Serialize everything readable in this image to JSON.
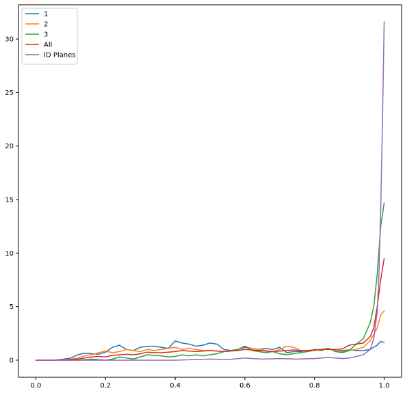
{
  "chart_data": {
    "type": "line",
    "title": "",
    "xlabel": "",
    "ylabel": "",
    "xlim": [
      -0.05,
      1.05
    ],
    "ylim": [
      -1.6,
      33.2
    ],
    "xticks": [
      0.0,
      0.2,
      0.4,
      0.6,
      0.8,
      1.0
    ],
    "xtick_labels": [
      "0.0",
      "0.2",
      "0.4",
      "0.6",
      "0.8",
      "1.0"
    ],
    "yticks": [
      0,
      5,
      10,
      15,
      20,
      25,
      30
    ],
    "ytick_labels": [
      "0",
      "5",
      "10",
      "15",
      "20",
      "25",
      "30"
    ],
    "grid": false,
    "legend_position": "top-left",
    "series": [
      {
        "name": "1",
        "color": "#1f77b4",
        "x": [
          0.0,
          0.05,
          0.08,
          0.1,
          0.12,
          0.14,
          0.16,
          0.18,
          0.2,
          0.22,
          0.24,
          0.26,
          0.28,
          0.3,
          0.32,
          0.34,
          0.36,
          0.38,
          0.4,
          0.42,
          0.44,
          0.46,
          0.48,
          0.5,
          0.52,
          0.54,
          0.56,
          0.58,
          0.6,
          0.62,
          0.64,
          0.66,
          0.68,
          0.7,
          0.72,
          0.74,
          0.76,
          0.78,
          0.8,
          0.82,
          0.84,
          0.86,
          0.88,
          0.9,
          0.92,
          0.94,
          0.96,
          0.98,
          0.99,
          1.0
        ],
        "y": [
          0.0,
          0.0,
          0.1,
          0.2,
          0.5,
          0.65,
          0.6,
          0.55,
          0.75,
          1.2,
          1.4,
          1.0,
          0.9,
          1.2,
          1.3,
          1.3,
          1.2,
          1.1,
          1.8,
          1.6,
          1.5,
          1.3,
          1.4,
          1.6,
          1.5,
          1.0,
          0.9,
          1.0,
          1.2,
          1.1,
          1.0,
          1.1,
          1.0,
          1.2,
          0.7,
          0.8,
          0.8,
          0.9,
          0.95,
          1.0,
          1.1,
          0.9,
          0.9,
          0.95,
          0.9,
          0.9,
          1.0,
          1.4,
          1.75,
          1.65
        ]
      },
      {
        "name": "2",
        "color": "#ff7f0e",
        "x": [
          0.0,
          0.05,
          0.08,
          0.1,
          0.12,
          0.14,
          0.16,
          0.18,
          0.2,
          0.22,
          0.24,
          0.26,
          0.28,
          0.3,
          0.32,
          0.34,
          0.36,
          0.38,
          0.4,
          0.42,
          0.44,
          0.46,
          0.48,
          0.5,
          0.52,
          0.54,
          0.56,
          0.58,
          0.6,
          0.62,
          0.64,
          0.66,
          0.68,
          0.7,
          0.72,
          0.74,
          0.76,
          0.78,
          0.8,
          0.82,
          0.84,
          0.86,
          0.88,
          0.9,
          0.92,
          0.94,
          0.96,
          0.98,
          0.99,
          1.0
        ],
        "y": [
          0.0,
          0.0,
          0.05,
          0.1,
          0.2,
          0.4,
          0.5,
          0.7,
          0.85,
          0.7,
          0.8,
          1.0,
          0.9,
          0.8,
          1.0,
          0.9,
          1.0,
          1.1,
          1.2,
          1.0,
          1.1,
          1.0,
          0.9,
          0.9,
          0.85,
          0.8,
          0.9,
          1.0,
          1.3,
          1.1,
          1.0,
          0.9,
          0.8,
          1.0,
          1.3,
          1.2,
          0.9,
          0.8,
          0.9,
          1.0,
          1.1,
          0.9,
          0.8,
          0.9,
          1.0,
          1.2,
          1.8,
          3.0,
          4.2,
          4.6
        ]
      },
      {
        "name": "3",
        "color": "#2ca02c",
        "x": [
          0.0,
          0.05,
          0.08,
          0.1,
          0.12,
          0.14,
          0.16,
          0.18,
          0.2,
          0.22,
          0.24,
          0.26,
          0.28,
          0.3,
          0.32,
          0.34,
          0.36,
          0.38,
          0.4,
          0.42,
          0.44,
          0.46,
          0.48,
          0.5,
          0.52,
          0.54,
          0.56,
          0.58,
          0.6,
          0.62,
          0.64,
          0.66,
          0.68,
          0.7,
          0.72,
          0.74,
          0.76,
          0.78,
          0.8,
          0.82,
          0.84,
          0.86,
          0.88,
          0.9,
          0.92,
          0.94,
          0.96,
          0.97,
          0.98,
          0.99,
          1.0
        ],
        "y": [
          0.0,
          0.0,
          0.0,
          0.0,
          0.0,
          0.05,
          0.1,
          0.05,
          0.0,
          0.1,
          0.3,
          0.2,
          0.1,
          0.3,
          0.5,
          0.45,
          0.4,
          0.3,
          0.35,
          0.5,
          0.4,
          0.5,
          0.4,
          0.5,
          0.6,
          0.8,
          0.9,
          1.0,
          1.3,
          0.9,
          0.8,
          0.7,
          0.8,
          0.6,
          0.5,
          0.6,
          0.7,
          0.8,
          1.0,
          0.9,
          1.1,
          0.8,
          0.7,
          0.9,
          1.5,
          2.0,
          3.5,
          5.0,
          8.0,
          12.5,
          14.7
        ]
      },
      {
        "name": "All",
        "color": "#d62728",
        "x": [
          0.0,
          0.05,
          0.08,
          0.1,
          0.12,
          0.14,
          0.16,
          0.18,
          0.2,
          0.22,
          0.24,
          0.26,
          0.28,
          0.3,
          0.32,
          0.34,
          0.36,
          0.38,
          0.4,
          0.42,
          0.44,
          0.46,
          0.48,
          0.5,
          0.52,
          0.54,
          0.56,
          0.58,
          0.6,
          0.62,
          0.64,
          0.66,
          0.68,
          0.7,
          0.72,
          0.74,
          0.76,
          0.78,
          0.8,
          0.82,
          0.84,
          0.86,
          0.88,
          0.9,
          0.92,
          0.94,
          0.96,
          0.97,
          0.98,
          0.99,
          1.0
        ],
        "y": [
          0.0,
          0.0,
          0.02,
          0.05,
          0.1,
          0.2,
          0.3,
          0.35,
          0.3,
          0.45,
          0.5,
          0.55,
          0.5,
          0.6,
          0.75,
          0.7,
          0.7,
          0.75,
          0.8,
          0.9,
          0.85,
          0.8,
          0.85,
          0.9,
          0.85,
          0.8,
          0.85,
          0.9,
          1.0,
          0.95,
          0.9,
          0.85,
          0.8,
          0.85,
          0.9,
          0.95,
          0.9,
          0.9,
          0.95,
          1.0,
          1.0,
          1.0,
          1.05,
          1.4,
          1.5,
          1.6,
          2.2,
          3.0,
          5.0,
          7.5,
          9.5
        ]
      },
      {
        "name": "ID Planes",
        "color": "#9467bd",
        "x": [
          0.0,
          0.1,
          0.2,
          0.3,
          0.4,
          0.5,
          0.55,
          0.6,
          0.62,
          0.65,
          0.7,
          0.75,
          0.8,
          0.84,
          0.86,
          0.88,
          0.9,
          0.92,
          0.94,
          0.96,
          0.97,
          0.98,
          0.985,
          0.99,
          0.995,
          1.0
        ],
        "y": [
          0.0,
          0.0,
          0.0,
          0.0,
          0.0,
          0.1,
          0.05,
          0.2,
          0.15,
          0.1,
          0.15,
          0.1,
          0.15,
          0.25,
          0.2,
          0.15,
          0.2,
          0.35,
          0.5,
          1.0,
          2.0,
          4.5,
          8.0,
          14.0,
          22.0,
          31.6
        ]
      }
    ]
  }
}
